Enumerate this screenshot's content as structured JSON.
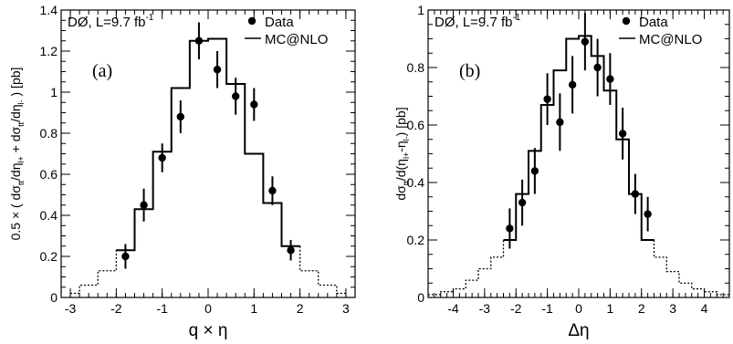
{
  "chart_data": [
    {
      "type": "step+errorbar",
      "panel_label": "(a)",
      "experiment_label": "DØ, L=9.7 fb",
      "lumi_exponent": "-1",
      "xlabel": "q × η",
      "ylabel_parts": [
        "0.5 × ( dσ",
        "tt",
        "/dη",
        "l+",
        " + dσ",
        "tt",
        "/dη",
        "l-",
        " ) [pb]"
      ],
      "xlim": [
        -3.2,
        3.2
      ],
      "ylim": [
        0,
        1.4
      ],
      "xticks": [
        -3,
        -2,
        -1,
        0,
        1,
        2,
        3
      ],
      "yticks": [
        0,
        0.2,
        0.4,
        0.6,
        0.8,
        1,
        1.2,
        1.4
      ],
      "ytick_labels": [
        "0",
        "0.2",
        "0.4",
        "0.6",
        "0.8",
        "1",
        "1.2",
        "1.4"
      ],
      "legend": {
        "data": "Data",
        "mc": "MC@NLO",
        "position": "top-right"
      },
      "mc_edges": [
        -3.0,
        -2.8,
        -2.4,
        -2.0,
        -1.6,
        -1.2,
        -0.8,
        -0.4,
        0.0,
        0.4,
        0.8,
        1.2,
        1.6,
        2.0,
        2.4,
        2.8,
        3.0
      ],
      "mc_values": [
        0.02,
        0.06,
        0.13,
        0.23,
        0.43,
        0.71,
        1.02,
        1.25,
        1.26,
        1.04,
        0.7,
        0.46,
        0.25,
        0.13,
        0.06,
        0.02
      ],
      "mc_solid_range": [
        -2.0,
        2.0
      ],
      "data_points": [
        {
          "x": -1.8,
          "y": 0.2,
          "err": 0.06
        },
        {
          "x": -1.4,
          "y": 0.45,
          "err": 0.08
        },
        {
          "x": -1.0,
          "y": 0.68,
          "err": 0.07
        },
        {
          "x": -0.6,
          "y": 0.88,
          "err": 0.08
        },
        {
          "x": -0.2,
          "y": 1.25,
          "err": 0.09
        },
        {
          "x": 0.2,
          "y": 1.11,
          "err": 0.09
        },
        {
          "x": 0.6,
          "y": 0.98,
          "err": 0.09
        },
        {
          "x": 1.0,
          "y": 0.94,
          "err": 0.08
        },
        {
          "x": 1.4,
          "y": 0.52,
          "err": 0.07
        },
        {
          "x": 1.8,
          "y": 0.23,
          "err": 0.05
        }
      ]
    },
    {
      "type": "step+errorbar",
      "panel_label": "(b)",
      "experiment_label": "DØ, L=9.7 fb",
      "lumi_exponent": "-1",
      "xlabel": "Δη",
      "ylabel_parts": [
        "dσ",
        "tt",
        "/d(η",
        "l+",
        "-η",
        "l-",
        ") [pb]"
      ],
      "xlim": [
        -4.8,
        4.8
      ],
      "ylim": [
        0,
        1.0
      ],
      "xticks": [
        -4,
        -3,
        -2,
        -1,
        0,
        1,
        2,
        3,
        4
      ],
      "yticks": [
        0,
        0.2,
        0.4,
        0.6,
        0.8,
        1.0
      ],
      "ytick_labels": [
        "0",
        "0.2",
        "0.4",
        "0.6",
        "0.8",
        "1"
      ],
      "legend": {
        "data": "Data",
        "mc": "MC@NLO",
        "position": "top-right"
      },
      "mc_edges": [
        -4.8,
        -4.4,
        -4.0,
        -3.6,
        -3.2,
        -2.8,
        -2.4,
        -2.0,
        -1.6,
        -1.2,
        -0.8,
        -0.4,
        0.0,
        0.4,
        0.8,
        1.2,
        1.6,
        2.0,
        2.4,
        2.8,
        3.2,
        3.6,
        4.0,
        4.4,
        4.8
      ],
      "mc_values": [
        0.01,
        0.02,
        0.03,
        0.06,
        0.1,
        0.14,
        0.2,
        0.36,
        0.51,
        0.67,
        0.79,
        0.9,
        0.91,
        0.84,
        0.72,
        0.55,
        0.36,
        0.2,
        0.14,
        0.09,
        0.05,
        0.03,
        0.02,
        0.01
      ],
      "mc_solid_range": [
        -2.4,
        2.4
      ],
      "data_points": [
        {
          "x": -2.2,
          "y": 0.24,
          "err": 0.07
        },
        {
          "x": -1.8,
          "y": 0.33,
          "err": 0.08
        },
        {
          "x": -1.4,
          "y": 0.44,
          "err": 0.08
        },
        {
          "x": -1.0,
          "y": 0.69,
          "err": 0.09
        },
        {
          "x": -0.6,
          "y": 0.61,
          "err": 0.1
        },
        {
          "x": -0.2,
          "y": 0.74,
          "err": 0.1
        },
        {
          "x": 0.2,
          "y": 0.89,
          "err": 0.1
        },
        {
          "x": 0.6,
          "y": 0.8,
          "err": 0.1
        },
        {
          "x": 1.0,
          "y": 0.76,
          "err": 0.09
        },
        {
          "x": 1.4,
          "y": 0.57,
          "err": 0.09
        },
        {
          "x": 1.8,
          "y": 0.36,
          "err": 0.07
        },
        {
          "x": 2.2,
          "y": 0.29,
          "err": 0.06
        }
      ]
    }
  ]
}
